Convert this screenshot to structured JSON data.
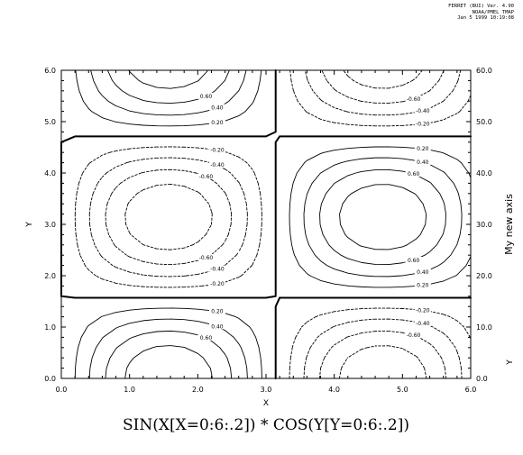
{
  "header": {
    "line1": "FERRET (BUI) Ver. 4.90",
    "line2": "NOAA/PMEL TMAP",
    "line3": "Jan 5 1999 10:19:08"
  },
  "chart_data": {
    "type": "contour",
    "function": "sin(x) * cos(y)",
    "title": "SIN(X[X=0:6:.2]) * COS(Y[Y=0:6:.2])",
    "xlabel": "X",
    "ylabel": "Y",
    "right_axis_label": "My new axis",
    "right_axis_corner_label": "Y",
    "xlim": [
      0.0,
      6.0
    ],
    "ylim": [
      0.0,
      6.0
    ],
    "right_ylim": [
      0.0,
      60.0
    ],
    "x_grid": {
      "start": 0,
      "stop": 6,
      "step": 0.2
    },
    "y_grid": {
      "start": 0,
      "stop": 6,
      "step": 0.2
    },
    "x_ticks": [
      "0.0",
      "1.0",
      "2.0",
      "3.0",
      "4.0",
      "5.0",
      "6.0"
    ],
    "y_ticks": [
      "0.0",
      "1.0",
      "2.0",
      "3.0",
      "4.0",
      "5.0",
      "6.0"
    ],
    "right_ticks": [
      "0.0",
      "10.0",
      "20.0",
      "30.0",
      "40.0",
      "50.0",
      "60.0"
    ],
    "levels": [
      -0.8,
      -0.6,
      -0.4,
      -0.2,
      0.0,
      0.2,
      0.4,
      0.6,
      0.8
    ],
    "labeled_levels": [
      -0.6,
      -0.4,
      -0.2,
      0.0,
      0.2,
      0.4,
      0.6
    ],
    "negative_style": "dashed",
    "zero_style": "bold",
    "positive_style": "solid",
    "grid": false,
    "legend": "none"
  }
}
